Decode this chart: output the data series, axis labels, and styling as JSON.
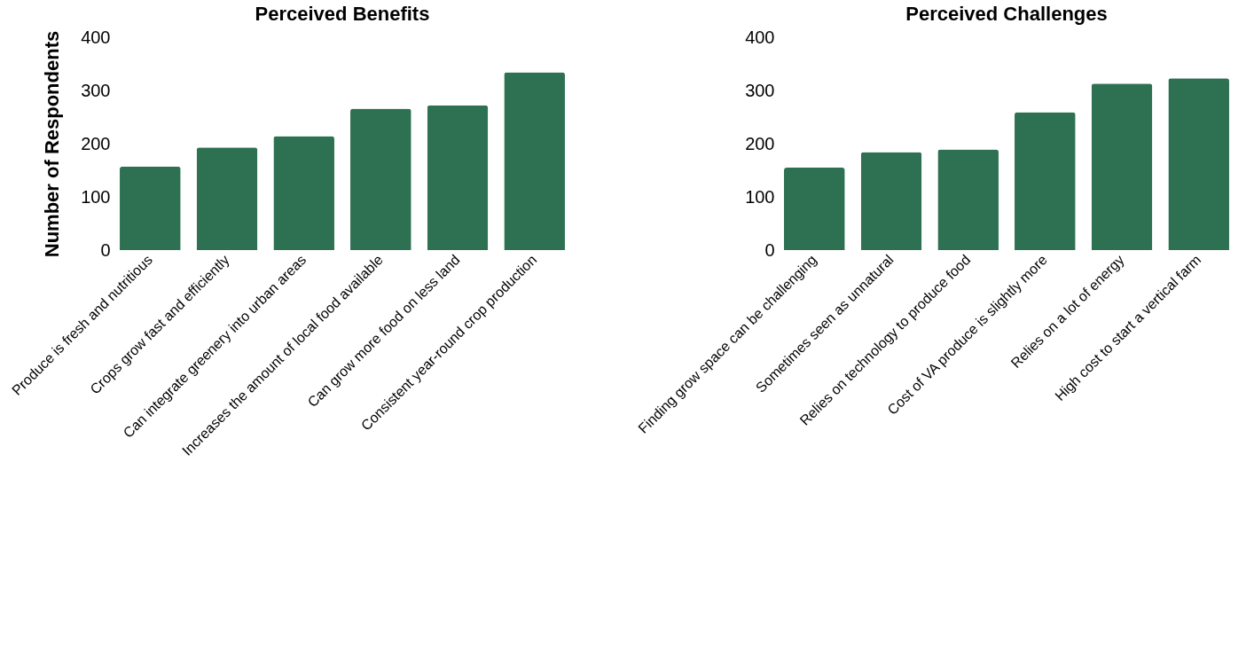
{
  "chart_data": [
    {
      "type": "bar",
      "title": "Perceived Benefits",
      "ylabel": "Number of Respondents",
      "categories": [
        "Produce is fresh and nutritious",
        "Crops grow fast and efficiently",
        "Can integrate greenery into urban areas",
        "Increases the amount of local food available",
        "Can grow more food on less land",
        "Consistent year-round crop production"
      ],
      "values": [
        157,
        193,
        214,
        266,
        272,
        334
      ],
      "color": "#2e7152",
      "ylim": [
        0,
        400
      ],
      "yticks": [
        0,
        100,
        200,
        300,
        400
      ],
      "grid": false
    },
    {
      "type": "bar",
      "title": "Perceived Challenges",
      "categories": [
        "Finding grow space can be challenging",
        "Sometimes seen as unnatural",
        "Relies on technology to produce food",
        "Cost of VA produce is slightly more",
        "Relies on a lot of energy",
        "High cost to start a vertical farm"
      ],
      "values": [
        155,
        184,
        189,
        259,
        313,
        323
      ],
      "color": "#2e7152",
      "ylim": [
        0,
        400
      ],
      "yticks": [
        0,
        100,
        200,
        300,
        400
      ],
      "grid": false
    }
  ]
}
